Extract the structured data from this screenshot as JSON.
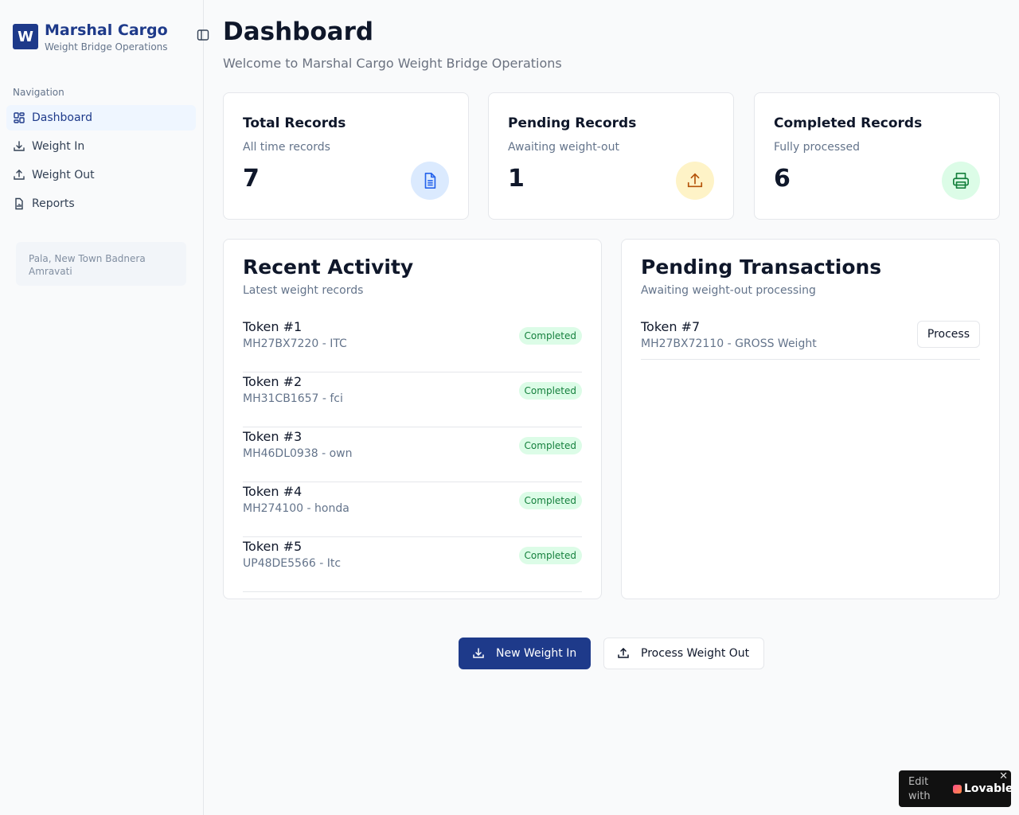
{
  "brand": {
    "logo_letter": "W",
    "name": "Marshal Cargo",
    "subtitle": "Weight Bridge Operations"
  },
  "sidebar": {
    "group_label": "Navigation",
    "items": [
      {
        "label": "Dashboard",
        "icon": "dashboard-grid-icon",
        "active": true
      },
      {
        "label": "Weight In",
        "icon": "download-icon",
        "active": false
      },
      {
        "label": "Weight Out",
        "icon": "upload-icon",
        "active": false
      },
      {
        "label": "Reports",
        "icon": "report-file-icon",
        "active": false
      }
    ],
    "location_line1": "Pala, New Town Badnera",
    "location_line2": "Amravati"
  },
  "header": {
    "title": "Dashboard",
    "subtitle": "Welcome to Marshal Cargo Weight Bridge Operations"
  },
  "stats": [
    {
      "title": "Total Records",
      "desc": "All time records",
      "value": "7",
      "icon": "document-icon",
      "color": "#2563eb",
      "bg": "#dbeafe"
    },
    {
      "title": "Pending Records",
      "desc": "Awaiting weight-out",
      "value": "1",
      "icon": "upload-icon",
      "color": "#b45309",
      "bg": "#fef3c7"
    },
    {
      "title": "Completed Records",
      "desc": "Fully processed",
      "value": "6",
      "icon": "printer-icon",
      "color": "#15803d",
      "bg": "#dcfce7"
    }
  ],
  "recent": {
    "title": "Recent Activity",
    "subtitle": "Latest weight records",
    "rows": [
      {
        "token": "Token #1",
        "detail": "MH27BX7220 - ITC",
        "status": "Completed"
      },
      {
        "token": "Token #2",
        "detail": "MH31CB1657 - fci",
        "status": "Completed"
      },
      {
        "token": "Token #3",
        "detail": "MH46DL0938 - own",
        "status": "Completed"
      },
      {
        "token": "Token #4",
        "detail": "MH274100 - honda",
        "status": "Completed"
      },
      {
        "token": "Token #5",
        "detail": "UP48DE5566 - Itc",
        "status": "Completed"
      }
    ]
  },
  "pending": {
    "title": "Pending Transactions",
    "subtitle": "Awaiting weight-out processing",
    "rows": [
      {
        "token": "Token #7",
        "detail": "MH27BX72110 - GROSS Weight",
        "action": "Process"
      }
    ]
  },
  "actions": {
    "new_weight_in": "New Weight In",
    "process_weight_out": "Process Weight Out"
  },
  "lovable": {
    "edit_text": "Edit with",
    "brand": "Lovable",
    "close": "✕"
  },
  "colors": {
    "primary": "#1e3a8a",
    "badge_bg": "#dcfce7",
    "badge_text": "#15803d"
  }
}
